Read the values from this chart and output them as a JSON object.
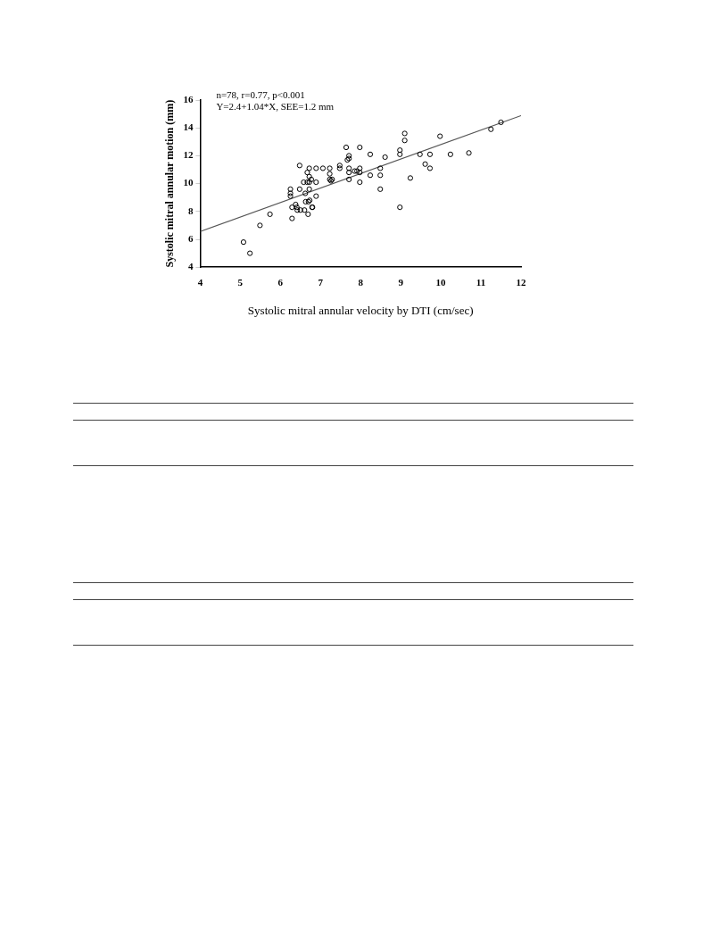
{
  "chart_data": {
    "type": "scatter",
    "xlabel": "Systolic mitral annular velocity by DTI (cm/sec)",
    "ylabel": "Systolic mitral annular motion (mm)",
    "annotations": [
      "n=78, r=0.77, p<0.001",
      "Y=2.4+1.04*X, SEE=1.2 mm"
    ],
    "xlim": [
      4,
      12
    ],
    "xticks": [
      4,
      5,
      6,
      7,
      8,
      9,
      10,
      11,
      12
    ],
    "ylim": [
      4,
      16
    ],
    "yticks": [
      4,
      6,
      8,
      10,
      12,
      14,
      16
    ],
    "grid": false,
    "legend": false,
    "marker": "circle",
    "series": [
      {
        "color": "#000000",
        "x": [
          5.08,
          5.24,
          5.49,
          5.74,
          6.25,
          6.25,
          6.25,
          6.29,
          6.29,
          6.38,
          6.41,
          6.42,
          6.48,
          6.48,
          6.5,
          6.58,
          6.6,
          6.62,
          6.63,
          6.67,
          6.67,
          6.69,
          6.72,
          6.72,
          6.72,
          6.72,
          6.73,
          6.7,
          6.77,
          6.79,
          6.8,
          6.89,
          6.89,
          6.89,
          7.06,
          7.23,
          7.23,
          7.23,
          7.26,
          7.29,
          7.48,
          7.48,
          7.64,
          7.67,
          7.71,
          7.71,
          7.71,
          7.71,
          7.71,
          7.85,
          7.91,
          7.98,
          7.98,
          7.98,
          7.98,
          8.24,
          8.24,
          8.49,
          8.49,
          8.49,
          8.61,
          8.98,
          8.98,
          8.98,
          9.1,
          9.1,
          9.24,
          9.48,
          9.61,
          9.73,
          9.73,
          9.98,
          10.24,
          10.7,
          11.25,
          11.5
        ],
        "values": [
          5.8,
          5.0,
          7.0,
          7.8,
          9.6,
          9.3,
          9.1,
          8.3,
          7.5,
          8.5,
          8.3,
          8.1,
          11.3,
          9.6,
          8.1,
          10.1,
          8.1,
          9.3,
          8.7,
          10.1,
          10.8,
          7.8,
          11.1,
          10.5,
          10.1,
          9.6,
          8.8,
          8.7,
          10.3,
          8.3,
          8.3,
          11.1,
          10.1,
          9.1,
          11.1,
          11.1,
          10.7,
          10.3,
          10.2,
          10.3,
          11.3,
          11.1,
          12.6,
          11.7,
          12.0,
          11.8,
          11.1,
          10.8,
          10.3,
          10.9,
          10.9,
          12.6,
          11.1,
          10.8,
          10.1,
          12.1,
          10.6,
          11.1,
          10.6,
          9.6,
          11.9,
          12.4,
          12.1,
          8.3,
          13.6,
          13.1,
          10.4,
          12.1,
          11.4,
          12.1,
          11.1,
          13.4,
          12.1,
          12.2,
          13.9,
          14.4
        ]
      },
      {
        "type": "line",
        "color": "#555555",
        "x": [
          4,
          12
        ],
        "values": [
          6.56,
          14.88
        ],
        "marker": "none",
        "line_style": "solid"
      }
    ]
  }
}
